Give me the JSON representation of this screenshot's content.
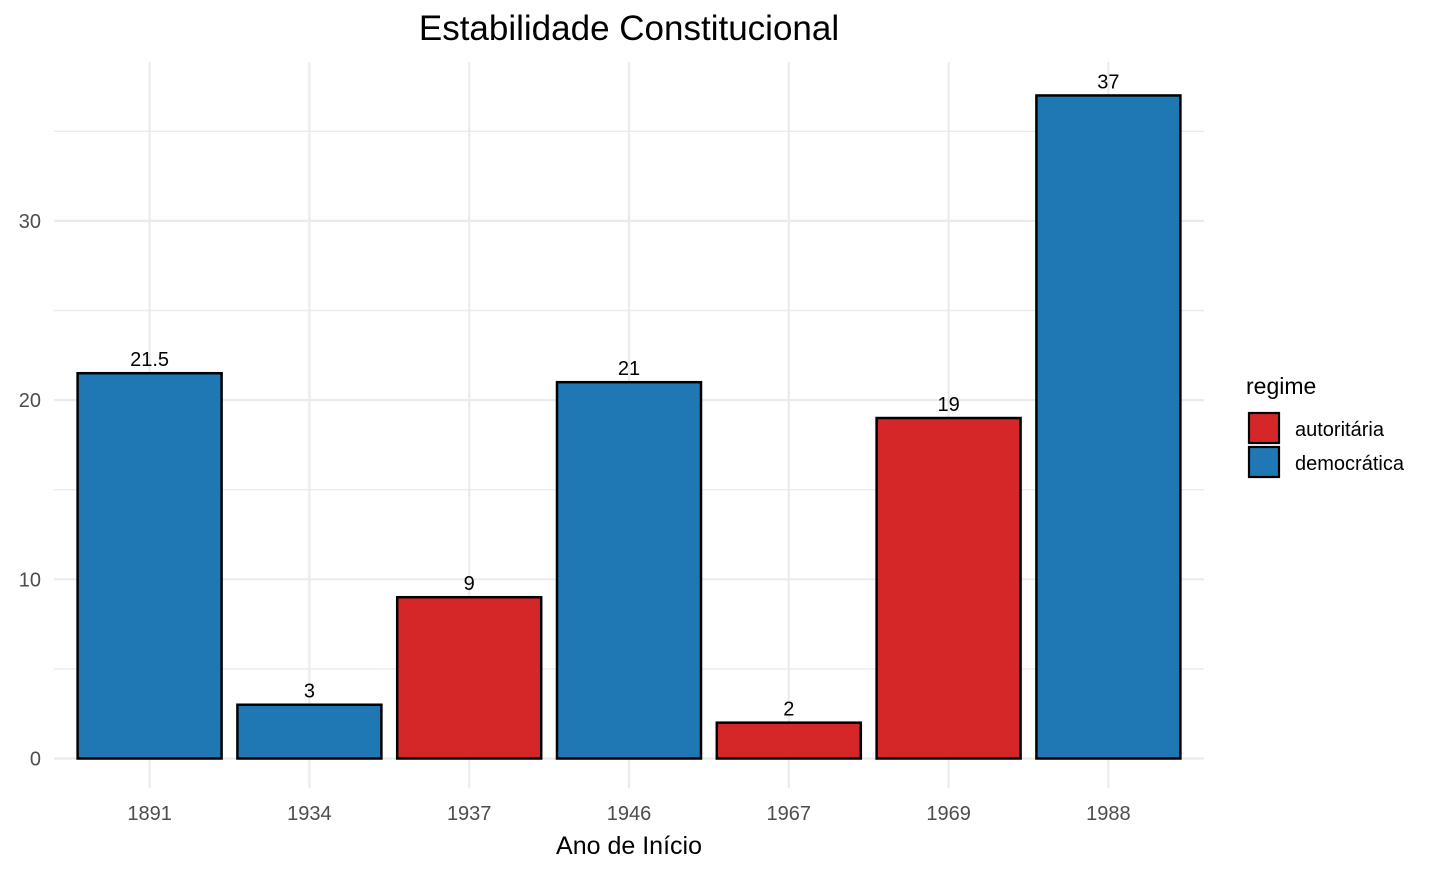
{
  "chart_data": {
    "type": "bar",
    "title": "Estabilidade Constitucional",
    "xlabel": "Ano de Início",
    "ylabel": "",
    "categories": [
      "1891",
      "1934",
      "1937",
      "1946",
      "1967",
      "1969",
      "1988"
    ],
    "values": [
      21.5,
      3,
      9,
      21,
      2,
      19,
      37
    ],
    "value_labels": [
      "21.5",
      "3",
      "9",
      "21",
      "2",
      "19",
      "37"
    ],
    "bar_groups": [
      "democrática",
      "democrática",
      "autoritária",
      "democrática",
      "autoritária",
      "autoritária",
      "democrática"
    ],
    "ylim": [
      0,
      38.85
    ],
    "yticks": [
      0,
      10,
      20,
      30
    ],
    "ytick_labels": [
      "0",
      "10",
      "20",
      "30"
    ],
    "grid": true,
    "legend": {
      "title": "regime",
      "position": "right",
      "entries": [
        {
          "label": "autoritária",
          "color": "#d62728"
        },
        {
          "label": "democrática",
          "color": "#1f77b4"
        }
      ]
    },
    "colors": {
      "autoritária": "#d62728",
      "democrática": "#1f77b4",
      "bar_outline": "#000000",
      "grid": "#ebebeb"
    }
  }
}
